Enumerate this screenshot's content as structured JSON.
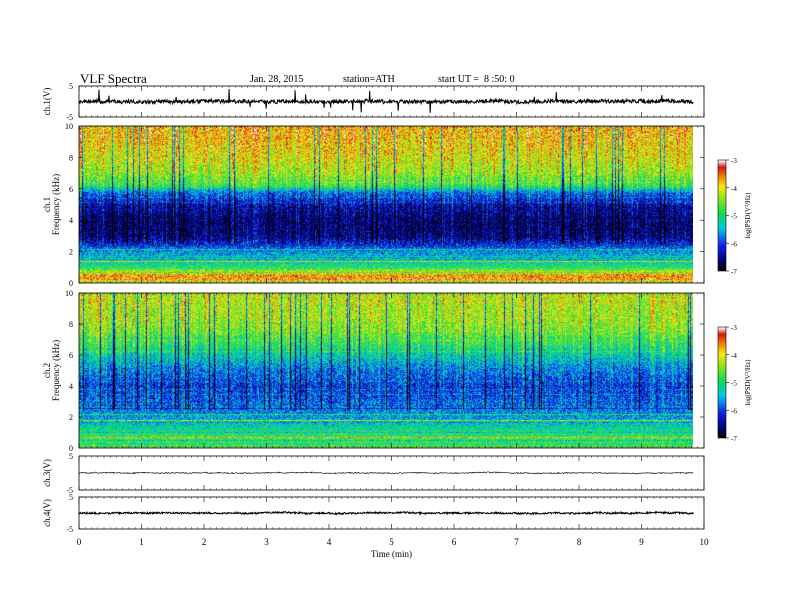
{
  "chart_data": {
    "type": "heatmap",
    "header": {
      "title": "VLF Spectra",
      "date": "Jan. 28, 2015",
      "station": "station=ATH",
      "start_ut": "start UT =  8 :50: 0"
    },
    "xlabel": "Time (min)",
    "xlim": [
      0,
      10
    ],
    "xticks": [
      "0",
      "1",
      "2",
      "3",
      "4",
      "5",
      "6",
      "7",
      "8",
      "9",
      "10"
    ],
    "data_end_min": 9.83,
    "panels": [
      {
        "id": "ch1-waveform",
        "type": "line",
        "ylabel": "ch.1(V)",
        "ylim": [
          -5,
          5
        ],
        "yticks": [
          "5",
          "-5"
        ],
        "trace_mean": 0,
        "trace_noise": 0.6,
        "spikes": true
      },
      {
        "id": "ch1-spectrogram",
        "type": "heatmap",
        "ylabel": "ch.1\nFrequency (kHz)",
        "ylabel_lines": [
          "ch.1",
          "Frequency (kHz)"
        ],
        "ylim": [
          0,
          10
        ],
        "yticks": [
          "0",
          "2",
          "4",
          "6",
          "8",
          "10"
        ],
        "colorbar_label": "log(PSD(V²/Hz)",
        "colorbar_range": [
          -7,
          -3
        ],
        "colorbar_ticks": [
          "-3",
          "-4",
          "-5",
          "-6",
          "-7"
        ],
        "profile_kHz": [
          [
            0,
            -4.2
          ],
          [
            0.5,
            -3.6
          ],
          [
            1,
            -4.9
          ],
          [
            1.5,
            -5.4
          ],
          [
            2,
            -5.6
          ],
          [
            2.5,
            -6.2
          ],
          [
            3,
            -6.6
          ],
          [
            4,
            -6.7
          ],
          [
            5,
            -6.4
          ],
          [
            5.8,
            -5.8
          ],
          [
            6.2,
            -4.9
          ],
          [
            7,
            -4.4
          ],
          [
            8,
            -4.1
          ],
          [
            9,
            -3.9
          ],
          [
            10,
            -3.8
          ]
        ]
      },
      {
        "id": "ch2-spectrogram",
        "type": "heatmap",
        "ylabel_lines": [
          "ch.2",
          "Frequency (kHz)"
        ],
        "ylim": [
          0,
          10
        ],
        "yticks": [
          "0",
          "2",
          "4",
          "6",
          "8",
          "10"
        ],
        "colorbar_label": "log(PSD(V²/Hz)",
        "colorbar_range": [
          -7,
          -3
        ],
        "colorbar_ticks": [
          "-3",
          "-4",
          "-5",
          "-6",
          "-7"
        ],
        "profile_kHz": [
          [
            0,
            -5.2
          ],
          [
            0.5,
            -4.8
          ],
          [
            1,
            -5.0
          ],
          [
            1.5,
            -5.3
          ],
          [
            2,
            -5.6
          ],
          [
            3,
            -5.9
          ],
          [
            4,
            -6.1
          ],
          [
            5,
            -5.8
          ],
          [
            6,
            -5.3
          ],
          [
            7,
            -4.8
          ],
          [
            8,
            -4.4
          ],
          [
            9,
            -4.3
          ],
          [
            10,
            -4.2
          ]
        ]
      },
      {
        "id": "ch3-waveform",
        "type": "line",
        "ylabel": "ch.3(V)",
        "ylim": [
          -5,
          5
        ],
        "yticks": [
          "5",
          "-5"
        ],
        "trace_mean": 0,
        "trace_noise": 0.15,
        "spikes": false
      },
      {
        "id": "ch4-waveform",
        "type": "line",
        "ylabel": "ch.4(V)",
        "ylim": [
          -5,
          5
        ],
        "yticks": [
          "5",
          "-5"
        ],
        "trace_mean": 0,
        "trace_noise": 0.25,
        "spikes": false
      }
    ]
  }
}
